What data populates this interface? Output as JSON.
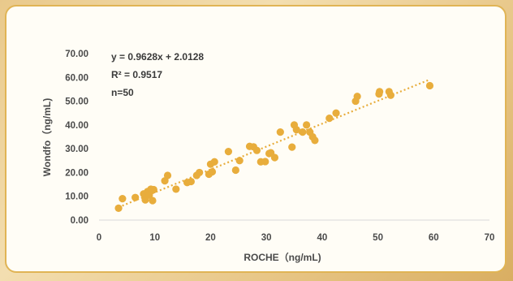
{
  "chart_data": {
    "type": "scatter",
    "title": "",
    "xlabel": "ROCHE（ng/mL)",
    "ylabel": "Wondfo（ng/mL)",
    "xlim": [
      0,
      70
    ],
    "ylim": [
      0,
      70
    ],
    "x_ticks": [
      "0",
      "10",
      "20",
      "30",
      "40",
      "50",
      "60",
      "70"
    ],
    "y_ticks": [
      "0.00",
      "10.00",
      "20.00",
      "30.00",
      "40.00",
      "50.00",
      "60.00",
      "70.00"
    ],
    "grid": false,
    "annotations": {
      "equation": "y = 0.9628x + 2.0128",
      "r2": "R² = 0.9517",
      "n": "n=50"
    },
    "trendline": {
      "slope": 0.9628,
      "intercept": 2.0128,
      "x_range": [
        3.5,
        59.3
      ]
    },
    "colors": {
      "points": "#e8ad3c",
      "trendline": "#e8ad3c",
      "card_border": "#e0b455"
    },
    "points": [
      [
        3.5,
        5.0
      ],
      [
        4.2,
        9.0
      ],
      [
        6.5,
        9.5
      ],
      [
        8.0,
        11.0
      ],
      [
        8.3,
        8.5
      ],
      [
        8.7,
        12.0
      ],
      [
        9.0,
        10.5
      ],
      [
        9.3,
        13.0
      ],
      [
        9.6,
        8.2
      ],
      [
        9.8,
        12.8
      ],
      [
        11.8,
        16.5
      ],
      [
        12.3,
        18.8
      ],
      [
        13.8,
        13.0
      ],
      [
        15.8,
        15.8
      ],
      [
        16.5,
        16.2
      ],
      [
        17.5,
        18.8
      ],
      [
        18.0,
        20.0
      ],
      [
        19.7,
        19.3
      ],
      [
        20.0,
        23.5
      ],
      [
        20.3,
        20.3
      ],
      [
        20.7,
        24.5
      ],
      [
        23.2,
        28.8
      ],
      [
        24.5,
        21.0
      ],
      [
        25.2,
        25.0
      ],
      [
        27.0,
        31.0
      ],
      [
        27.7,
        30.8
      ],
      [
        28.3,
        29.3
      ],
      [
        29.0,
        24.5
      ],
      [
        29.8,
        24.6
      ],
      [
        30.5,
        28.0
      ],
      [
        30.8,
        28.3
      ],
      [
        31.5,
        26.3
      ],
      [
        32.5,
        37.0
      ],
      [
        34.6,
        30.7
      ],
      [
        35.0,
        40.0
      ],
      [
        35.4,
        38.0
      ],
      [
        36.5,
        37.0
      ],
      [
        37.2,
        40.0
      ],
      [
        37.8,
        37.0
      ],
      [
        38.3,
        35.0
      ],
      [
        38.7,
        33.5
      ],
      [
        41.3,
        42.8
      ],
      [
        42.5,
        45.0
      ],
      [
        46.0,
        50.0
      ],
      [
        46.3,
        52.0
      ],
      [
        50.2,
        53.0
      ],
      [
        50.3,
        54.0
      ],
      [
        52.0,
        54.0
      ],
      [
        52.3,
        52.5
      ],
      [
        59.3,
        56.5
      ]
    ]
  }
}
